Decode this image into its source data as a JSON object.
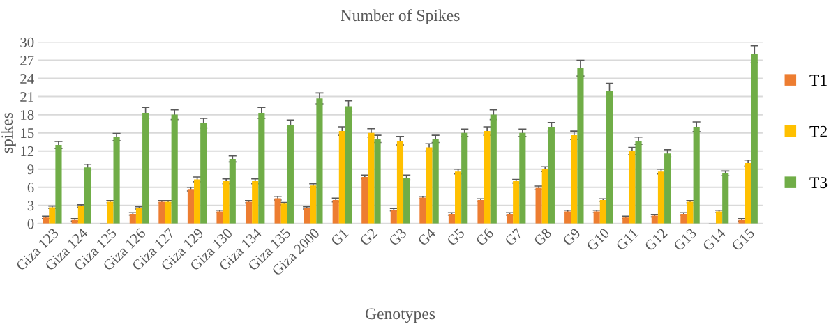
{
  "chart_data": {
    "type": "bar",
    "title": "Number of Spikes",
    "xlabel": "Genotypes",
    "ylabel": "spikes",
    "categories": [
      "Giza 123",
      "Giza 124",
      "Giza 125",
      "Giza 126",
      "Giza 127",
      "Giza 129",
      "Giza 130",
      "Giza 134",
      "Giza 135",
      "Giza 2000",
      "G1",
      "G2",
      "G3",
      "G4",
      "G5",
      "G6",
      "G7",
      "G8",
      "G9",
      "G10",
      "G11",
      "G12",
      "G13",
      "G14",
      "G15"
    ],
    "series": [
      {
        "name": "T1",
        "color": "#ed7d31",
        "values": [
          1.0,
          0.6,
          0,
          1.6,
          3.6,
          5.7,
          2.0,
          3.6,
          4.2,
          2.6,
          3.9,
          7.7,
          2.3,
          4.3,
          1.6,
          3.9,
          1.6,
          5.9,
          2.0,
          2.0,
          1.0,
          1.3,
          1.6,
          0,
          0.6
        ],
        "errors": [
          0.2,
          0.2,
          0,
          0.2,
          0.2,
          0.3,
          0.2,
          0.2,
          0.3,
          0.2,
          0.3,
          0.3,
          0.2,
          0.2,
          0.2,
          0.2,
          0.2,
          0.3,
          0.2,
          0.2,
          0.2,
          0.2,
          0.2,
          0,
          0.2
        ]
      },
      {
        "name": "T2",
        "color": "#ffc000",
        "values": [
          2.7,
          2.9,
          3.6,
          2.6,
          3.6,
          7.3,
          7.0,
          7.0,
          3.3,
          6.3,
          15.3,
          15.0,
          13.7,
          12.6,
          8.6,
          15.3,
          7.0,
          9.0,
          14.6,
          3.9,
          12.0,
          8.6,
          3.6,
          2.0,
          10.0
        ],
        "errors": [
          0.2,
          0.2,
          0.2,
          0.2,
          0.2,
          0.4,
          0.4,
          0.4,
          0.2,
          0.3,
          0.7,
          0.7,
          0.7,
          0.6,
          0.4,
          0.7,
          0.3,
          0.4,
          0.7,
          0.2,
          0.6,
          0.4,
          0.2,
          0.2,
          0.5
        ]
      },
      {
        "name": "T3",
        "color": "#70ad47",
        "values": [
          13.0,
          9.3,
          14.3,
          18.3,
          18.0,
          16.6,
          10.7,
          18.3,
          16.3,
          20.7,
          19.4,
          14.0,
          7.6,
          14.0,
          15.0,
          18.0,
          15.0,
          16.0,
          25.7,
          22.0,
          13.7,
          11.6,
          16.0,
          8.3,
          28.0
        ],
        "errors": [
          0.6,
          0.5,
          0.6,
          0.9,
          0.8,
          0.8,
          0.5,
          0.9,
          0.8,
          0.9,
          0.9,
          0.6,
          0.4,
          0.6,
          0.6,
          0.8,
          0.6,
          0.7,
          1.3,
          1.2,
          0.6,
          0.6,
          0.8,
          0.4,
          1.4
        ]
      }
    ],
    "ylim": [
      0,
      30
    ],
    "yticks": [
      0,
      3,
      6,
      9,
      12,
      15,
      18,
      21,
      24,
      27,
      30
    ],
    "grid": "y",
    "legend": "right"
  }
}
